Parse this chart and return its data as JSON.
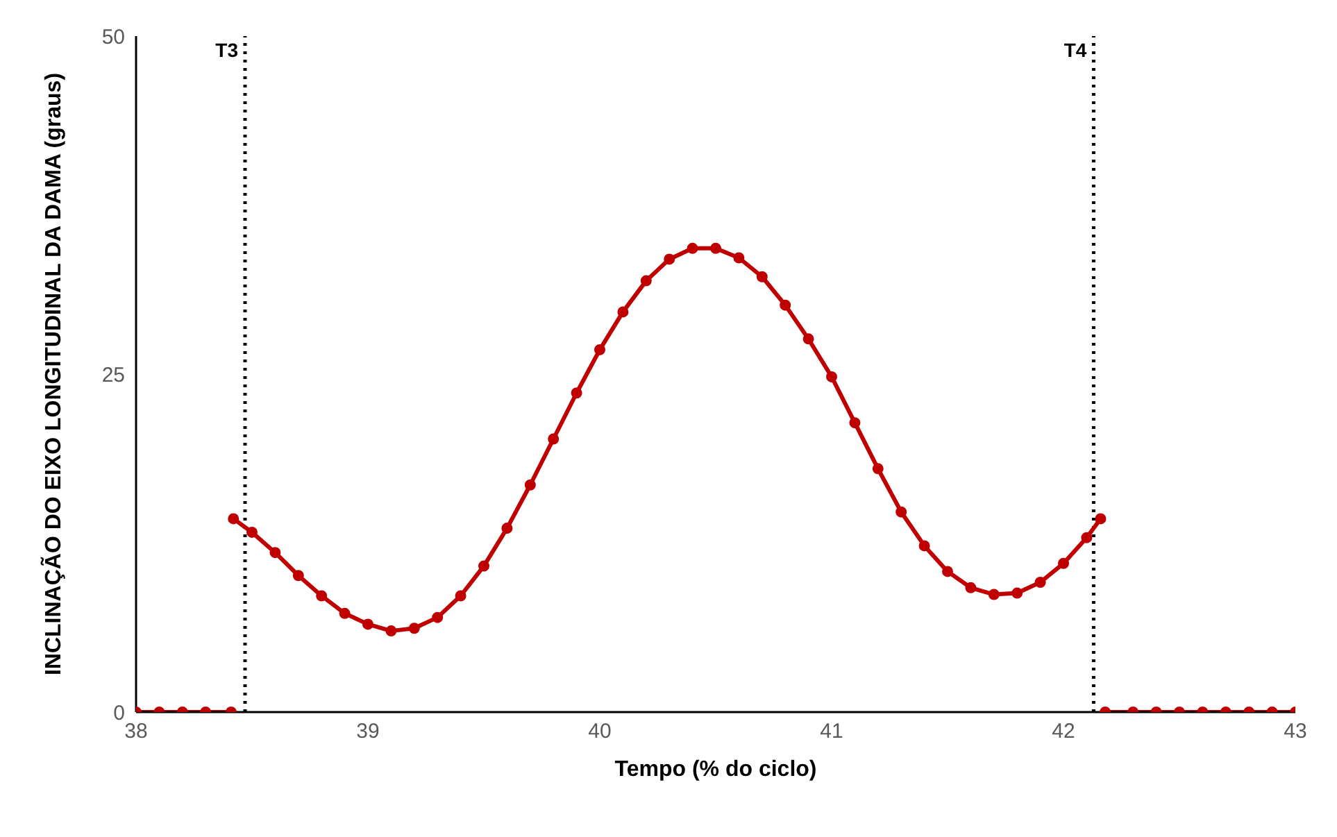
{
  "chart_data": {
    "type": "line",
    "xlabel": "Tempo (% do ciclo)",
    "ylabel": "INCLINAÇÃO DO EIXO LONGITUDINAL DA DAMA (graus)",
    "xlim": [
      38,
      43
    ],
    "xticks": [
      38,
      39,
      40,
      41,
      42,
      43
    ],
    "ylim": [
      0,
      50
    ],
    "yticks": [
      0,
      25,
      50
    ],
    "grid": false,
    "legend": false,
    "marker": "circle",
    "line_style": "solid",
    "x": [
      38,
      38.1,
      38.2,
      38.3,
      38.41,
      38.415,
      38.42,
      38.5,
      38.6,
      38.7,
      38.8,
      38.9,
      39.0,
      39.1,
      39.2,
      39.3,
      39.4,
      39.5,
      39.6,
      39.7,
      39.8,
      39.9,
      40.0,
      40.1,
      40.2,
      40.3,
      40.4,
      40.5,
      40.6,
      40.7,
      40.8,
      40.9,
      41.0,
      41.1,
      41.2,
      41.3,
      41.4,
      41.5,
      41.6,
      41.7,
      41.8,
      41.9,
      42.0,
      42.1,
      42.16,
      42.17,
      42.18,
      42.3,
      42.4,
      42.5,
      42.6,
      42.7,
      42.8,
      42.9,
      43
    ],
    "series": [
      {
        "color": "#c00000",
        "values": [
          0,
          0,
          0,
          0,
          0,
          null,
          14.3,
          13.3,
          11.8,
          10.1,
          8.6,
          7.3,
          6.5,
          6.0,
          6.2,
          7.0,
          8.6,
          10.8,
          13.6,
          16.8,
          20.2,
          23.6,
          26.8,
          29.6,
          31.9,
          33.5,
          34.3,
          34.3,
          33.6,
          32.2,
          30.1,
          27.6,
          24.8,
          21.4,
          18.0,
          14.8,
          12.3,
          10.4,
          9.2,
          8.7,
          8.8,
          9.6,
          11.0,
          12.9,
          14.3,
          null,
          0,
          0,
          0,
          0,
          0,
          0,
          0,
          0,
          0
        ]
      }
    ],
    "ref_lines": [
      {
        "axis": "x",
        "value": 38.47,
        "label": "T3",
        "color": "#000000",
        "line_style": "dotted"
      },
      {
        "axis": "x",
        "value": 42.13,
        "label": "T4",
        "color": "#000000",
        "line_style": "dotted"
      }
    ]
  }
}
